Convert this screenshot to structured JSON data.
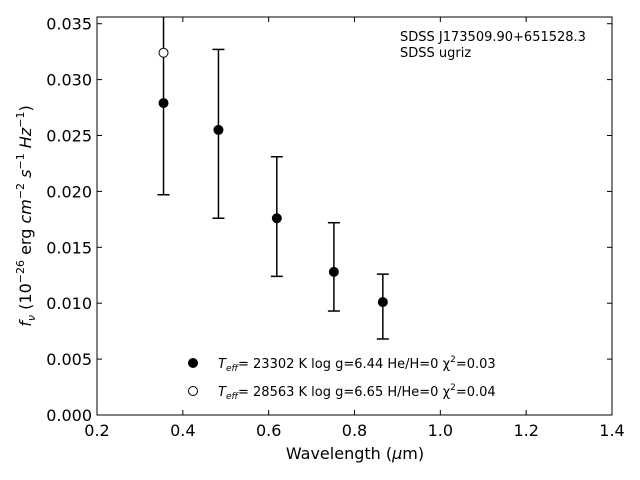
{
  "chart_data": {
    "type": "scatter",
    "xlabel": "Wavelength (μm)",
    "ylabel": "f_ν (10⁻²⁶ erg cm⁻² s⁻¹ Hz⁻¹)",
    "xlim": [
      0.2,
      1.4
    ],
    "ylim": [
      0.0,
      0.0356
    ],
    "xticks": [
      "0.2",
      "0.4",
      "0.6",
      "0.8",
      "1.0",
      "1.2",
      "1.4"
    ],
    "yticks": [
      "0.000",
      "0.005",
      "0.010",
      "0.015",
      "0.020",
      "0.025",
      "0.030",
      "0.035"
    ],
    "grid": false,
    "annotation_lines": [
      "SDSS J173509.90+651528.3",
      "SDSS ugriz"
    ],
    "observed": {
      "name": "SDSS ugriz",
      "x": [
        0.355,
        0.483,
        0.619,
        0.752,
        0.866
      ],
      "y": [
        0.0279,
        0.0255,
        0.0176,
        0.0128,
        0.0101
      ],
      "yerr_low": [
        0.0197,
        0.0176,
        0.0124,
        0.0093,
        0.0068
      ],
      "yerr_high": [
        0.0356,
        0.0327,
        0.0231,
        0.0172,
        0.0126
      ]
    },
    "series": [
      {
        "name": "T_eff= 23302 K  log g=6.44  He/H=0  χ²=0.03",
        "marker": "filled-circle",
        "x": [
          0.355,
          0.483,
          0.619,
          0.752,
          0.866
        ],
        "y": [
          0.0279,
          0.0255,
          0.0176,
          0.0128,
          0.0101
        ]
      },
      {
        "name": "T_eff= 28563 K  log g=6.65  H/He=0  χ²=0.04",
        "marker": "open-circle",
        "x": [
          0.355
        ],
        "y": [
          0.0324
        ]
      }
    ],
    "legend": {
      "placement": "lower-center",
      "entries": [
        {
          "teff_value": "= 23302 K  log g=6.44  He/H=0  χ",
          "chi_value": "=0.03",
          "marker": "filled-circle"
        },
        {
          "teff_value": "= 28563 K  log g=6.65  H/He=0  χ",
          "chi_value": "=0.04",
          "marker": "open-circle"
        }
      ]
    }
  }
}
